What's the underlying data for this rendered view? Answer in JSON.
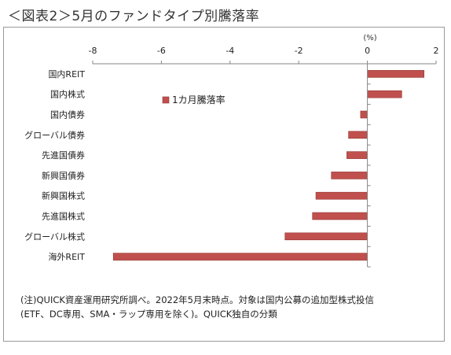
{
  "page_title": "＜図表2＞5月のファンドタイプ別騰落率",
  "notes": [
    "(注)QUICK資産運用研究所調べ。2022年5月末時点。対象は国内公募の追加型株式投信",
    "(ETF、DC専用、SMA・ラップ専用を除く)。QUICK独自の分類"
  ],
  "colors": {
    "bar": "#C0504D",
    "bar_edge": "#943634",
    "axis": "#868686"
  },
  "chart_data": {
    "type": "bar",
    "orientation": "horizontal",
    "unit_label": "(%)",
    "xlim": [
      -8,
      2
    ],
    "x_ticks": [
      -8,
      -6,
      -4,
      -2,
      0,
      2
    ],
    "categories": [
      "国内REIT",
      "国内株式",
      "国内債券",
      "グローバル債券",
      "先進国債券",
      "新興国債券",
      "新興国株式",
      "先進国株式",
      "グローバル株式",
      "海外REIT"
    ],
    "series": [
      {
        "name": "1カ月騰落率",
        "values": [
          1.65,
          1.0,
          -0.2,
          -0.55,
          -0.6,
          -1.05,
          -1.5,
          -1.6,
          -2.4,
          -7.4
        ]
      }
    ],
    "legend_position": "top-left-inside",
    "grid": false
  }
}
